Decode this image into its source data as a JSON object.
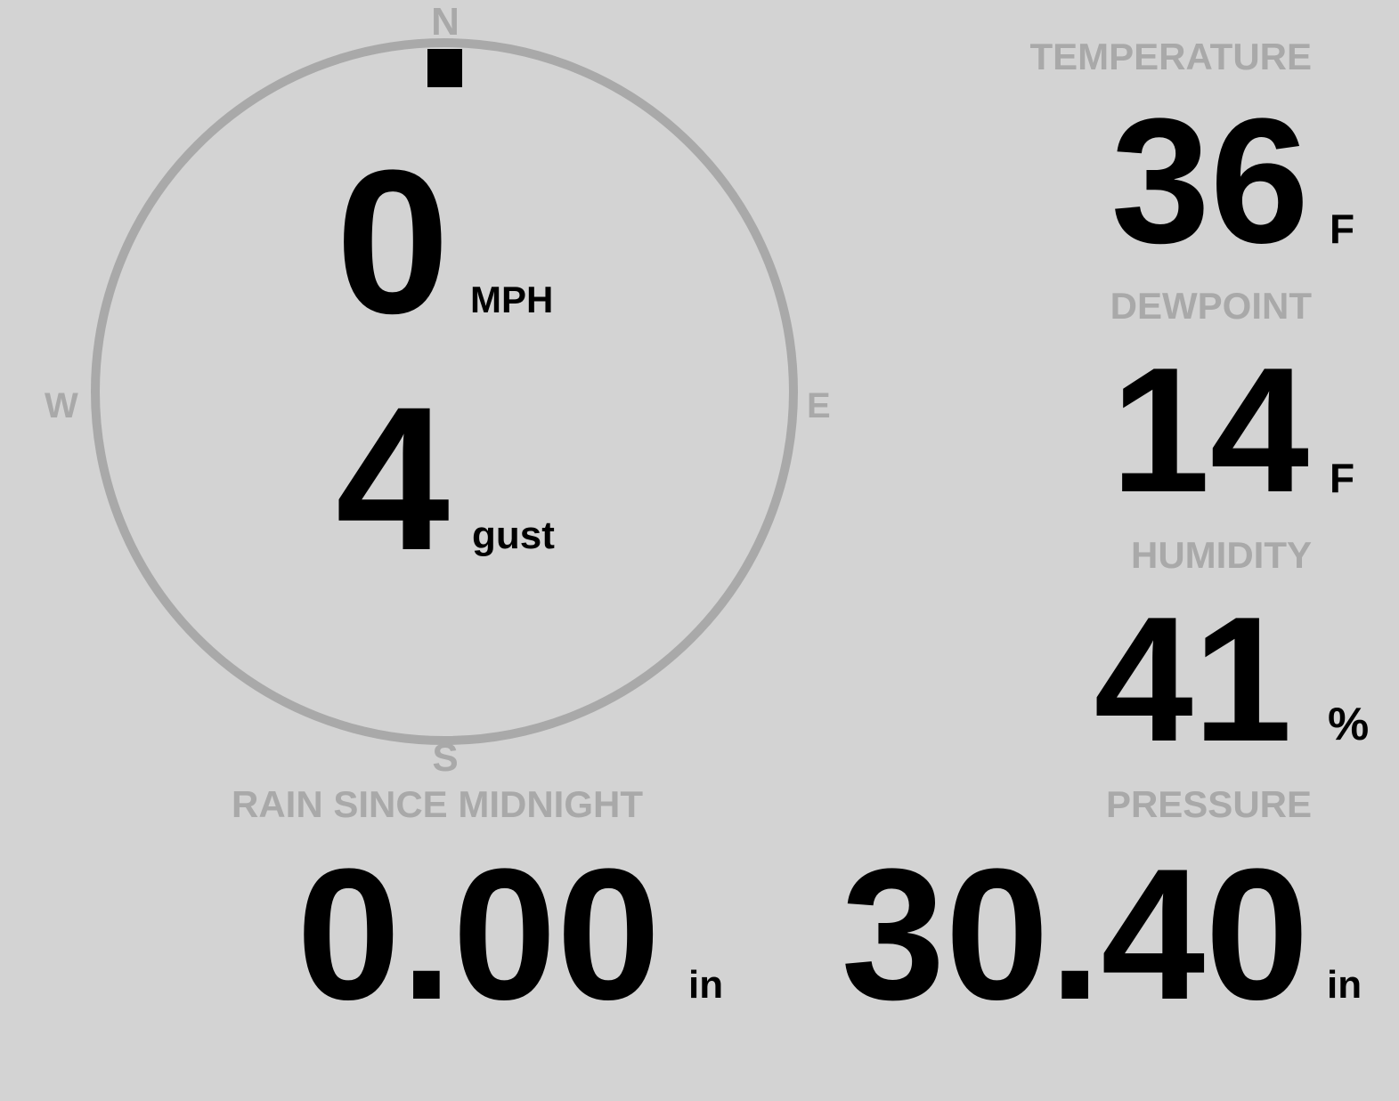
{
  "wind": {
    "direction_deg": 0,
    "speed": "0",
    "speed_unit": "MPH",
    "gust": "4",
    "gust_unit": "gust",
    "compass": {
      "n": "N",
      "e": "E",
      "s": "S",
      "w": "W"
    },
    "ring_color": "#a9a9a9",
    "indicator_color": "#000000"
  },
  "temperature": {
    "label": "TEMPERATURE",
    "value": "36",
    "unit": "F"
  },
  "dewpoint": {
    "label": "DEWPOINT",
    "value": "14",
    "unit": "F"
  },
  "humidity": {
    "label": "HUMIDITY",
    "value": "41",
    "unit": "%"
  },
  "pressure": {
    "label": "PRESSURE",
    "value": "30.40",
    "unit": "in"
  },
  "rain": {
    "label": "RAIN SINCE MIDNIGHT",
    "value": "0.00",
    "unit": "in"
  },
  "colors": {
    "background": "#d3d3d3",
    "label": "#a9a9a9",
    "value": "#000000"
  }
}
